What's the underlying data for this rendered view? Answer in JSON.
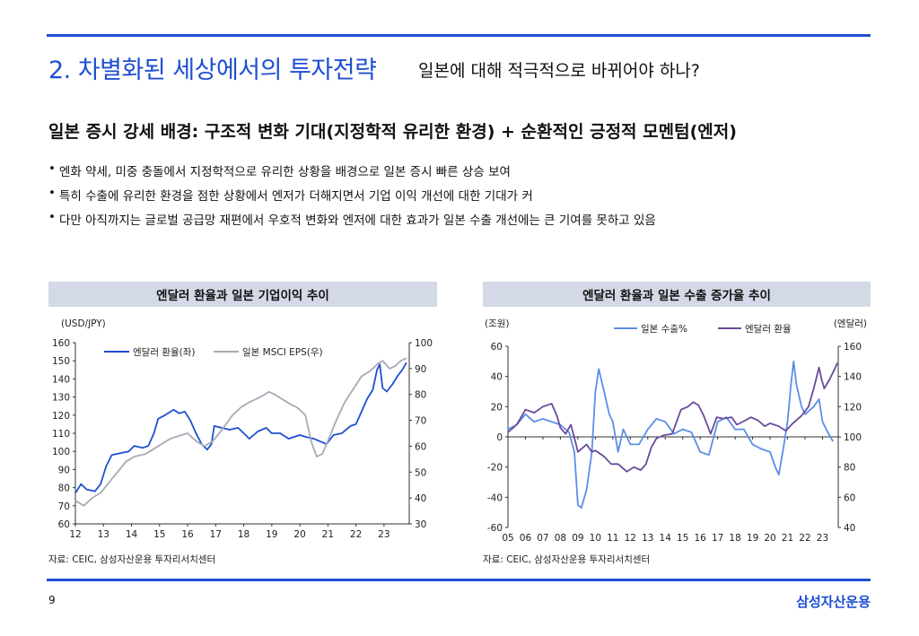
{
  "header": {
    "title": "2. 차별화된 세상에서의 투자전략",
    "subtitle": "일본에 대해 적극적으로 바뀌어야 하나?"
  },
  "section": {
    "heading": "일본 증시 강세 배경: 구조적 변화 기대(지정학적 유리한 환경) + 순환적인 긍정적 모멘텀(엔저)",
    "bullets": [
      "엔화 약세, 미중 충돌에서 지정학적으로 유리한 상황을 배경으로 일본 증시 빠른 상승 보여",
      "특히 수출에 유리한 환경을 점한 상황에서 엔저가 더해지면서 기업 이익 개선에 대한 기대가 커",
      "다만 아직까지는 글로벌 공급망 재편에서 우호적 변화와 엔저에 대한 효과가 일본 수출 개선에는 큰 기여를 못하고 있음"
    ]
  },
  "chart_data": [
    {
      "type": "line",
      "title": "엔달러 환율과 일본 기업이익 추이",
      "left_unit": "(USD/JPY)",
      "x_ticks": [
        "12",
        "13",
        "14",
        "15",
        "16",
        "17",
        "18",
        "19",
        "20",
        "21",
        "22",
        "23"
      ],
      "x_range": [
        2012.0,
        2023.9
      ],
      "ylim_left": [
        60,
        160
      ],
      "yticks_left": [
        60,
        70,
        80,
        90,
        100,
        110,
        120,
        130,
        140,
        150,
        160
      ],
      "ylim_right": [
        30,
        100
      ],
      "yticks_right": [
        30,
        40,
        50,
        60,
        70,
        80,
        90,
        100
      ],
      "series": [
        {
          "name": "엔달러 환율(좌)",
          "axis": "left",
          "color": "#1f4fd1",
          "points": [
            [
              2012.0,
              77
            ],
            [
              2012.2,
              82
            ],
            [
              2012.4,
              79
            ],
            [
              2012.7,
              78
            ],
            [
              2012.9,
              82
            ],
            [
              2013.1,
              92
            ],
            [
              2013.3,
              98
            ],
            [
              2013.6,
              99
            ],
            [
              2013.9,
              100
            ],
            [
              2014.1,
              103
            ],
            [
              2014.4,
              102
            ],
            [
              2014.6,
              103
            ],
            [
              2014.8,
              110
            ],
            [
              2014.95,
              118
            ],
            [
              2015.2,
              120
            ],
            [
              2015.5,
              123
            ],
            [
              2015.7,
              121
            ],
            [
              2015.9,
              122
            ],
            [
              2016.1,
              117
            ],
            [
              2016.3,
              110
            ],
            [
              2016.5,
              104
            ],
            [
              2016.7,
              101
            ],
            [
              2016.85,
              104
            ],
            [
              2016.95,
              114
            ],
            [
              2017.2,
              113
            ],
            [
              2017.5,
              112
            ],
            [
              2017.8,
              113
            ],
            [
              2018.0,
              110
            ],
            [
              2018.2,
              107
            ],
            [
              2018.5,
              111
            ],
            [
              2018.8,
              113
            ],
            [
              2019.0,
              110
            ],
            [
              2019.3,
              110
            ],
            [
              2019.6,
              107
            ],
            [
              2019.8,
              108
            ],
            [
              2020.0,
              109
            ],
            [
              2020.2,
              108
            ],
            [
              2020.5,
              107
            ],
            [
              2020.8,
              105
            ],
            [
              2020.95,
              104
            ],
            [
              2021.2,
              109
            ],
            [
              2021.5,
              110
            ],
            [
              2021.8,
              114
            ],
            [
              2022.0,
              115
            ],
            [
              2022.2,
              122
            ],
            [
              2022.4,
              129
            ],
            [
              2022.6,
              134
            ],
            [
              2022.75,
              145
            ],
            [
              2022.85,
              148
            ],
            [
              2022.95,
              135
            ],
            [
              2023.1,
              133
            ],
            [
              2023.3,
              137
            ],
            [
              2023.5,
              142
            ],
            [
              2023.65,
              145
            ],
            [
              2023.8,
              149
            ]
          ]
        },
        {
          "name": "일본 MSCI EPS(우)",
          "axis": "right",
          "color": "#a8aab5",
          "points": [
            [
              2012.0,
              39
            ],
            [
              2012.3,
              37
            ],
            [
              2012.6,
              40
            ],
            [
              2012.9,
              42
            ],
            [
              2013.2,
              46
            ],
            [
              2013.5,
              50
            ],
            [
              2013.8,
              54
            ],
            [
              2014.1,
              56
            ],
            [
              2014.5,
              57
            ],
            [
              2014.8,
              59
            ],
            [
              2015.1,
              61
            ],
            [
              2015.4,
              63
            ],
            [
              2015.7,
              64
            ],
            [
              2016.0,
              65
            ],
            [
              2016.3,
              62
            ],
            [
              2016.6,
              60
            ],
            [
              2016.9,
              62
            ],
            [
              2017.2,
              66
            ],
            [
              2017.6,
              72
            ],
            [
              2017.9,
              75
            ],
            [
              2018.2,
              77
            ],
            [
              2018.6,
              79
            ],
            [
              2018.9,
              81
            ],
            [
              2019.1,
              80
            ],
            [
              2019.4,
              78
            ],
            [
              2019.7,
              76
            ],
            [
              2019.9,
              75
            ],
            [
              2020.2,
              72
            ],
            [
              2020.4,
              62
            ],
            [
              2020.6,
              56
            ],
            [
              2020.8,
              57
            ],
            [
              2021.0,
              62
            ],
            [
              2021.3,
              70
            ],
            [
              2021.6,
              77
            ],
            [
              2021.9,
              82
            ],
            [
              2022.2,
              87
            ],
            [
              2022.5,
              89
            ],
            [
              2022.8,
              92
            ],
            [
              2022.95,
              93
            ],
            [
              2023.2,
              90
            ],
            [
              2023.4,
              91
            ],
            [
              2023.6,
              93
            ],
            [
              2023.8,
              94
            ]
          ]
        }
      ]
    },
    {
      "type": "line",
      "title": "엔달러 환율과 일본 수출 증가율 추이",
      "left_unit": "(조원)",
      "right_unit": "(엔달러)",
      "x_ticks": [
        "05",
        "06",
        "07",
        "08",
        "09",
        "10",
        "11",
        "12",
        "13",
        "14",
        "15",
        "16",
        "17",
        "18",
        "19",
        "20",
        "21",
        "22",
        "23"
      ],
      "x_range": [
        2005.0,
        2023.9
      ],
      "ylim_left": [
        -60,
        60
      ],
      "yticks_left": [
        -60,
        -40,
        -20,
        0,
        20,
        40,
        60
      ],
      "ylim_right": [
        40,
        160
      ],
      "yticks_right": [
        40,
        60,
        80,
        100,
        120,
        140,
        160
      ],
      "series": [
        {
          "name": "일본 수출%",
          "axis": "left",
          "color": "#5b8ee6",
          "points": [
            [
              2005.0,
              5
            ],
            [
              2005.5,
              8
            ],
            [
              2006.0,
              15
            ],
            [
              2006.5,
              10
            ],
            [
              2007.0,
              12
            ],
            [
              2007.5,
              10
            ],
            [
              2008.0,
              8
            ],
            [
              2008.5,
              3
            ],
            [
              2008.8,
              -10
            ],
            [
              2009.0,
              -45
            ],
            [
              2009.2,
              -47
            ],
            [
              2009.5,
              -35
            ],
            [
              2009.8,
              -10
            ],
            [
              2010.0,
              30
            ],
            [
              2010.2,
              45
            ],
            [
              2010.5,
              30
            ],
            [
              2010.8,
              15
            ],
            [
              2011.0,
              10
            ],
            [
              2011.3,
              -10
            ],
            [
              2011.6,
              5
            ],
            [
              2012.0,
              -5
            ],
            [
              2012.5,
              -5
            ],
            [
              2013.0,
              5
            ],
            [
              2013.5,
              12
            ],
            [
              2014.0,
              10
            ],
            [
              2014.5,
              2
            ],
            [
              2015.0,
              5
            ],
            [
              2015.5,
              3
            ],
            [
              2016.0,
              -10
            ],
            [
              2016.5,
              -12
            ],
            [
              2017.0,
              10
            ],
            [
              2017.5,
              13
            ],
            [
              2018.0,
              5
            ],
            [
              2018.5,
              5
            ],
            [
              2019.0,
              -5
            ],
            [
              2019.5,
              -8
            ],
            [
              2020.0,
              -10
            ],
            [
              2020.3,
              -20
            ],
            [
              2020.5,
              -25
            ],
            [
              2020.8,
              -5
            ],
            [
              2021.0,
              10
            ],
            [
              2021.2,
              35
            ],
            [
              2021.35,
              50
            ],
            [
              2021.5,
              35
            ],
            [
              2021.8,
              20
            ],
            [
              2022.0,
              15
            ],
            [
              2022.5,
              20
            ],
            [
              2022.8,
              25
            ],
            [
              2023.0,
              10
            ],
            [
              2023.3,
              3
            ],
            [
              2023.6,
              -3
            ]
          ]
        },
        {
          "name": "엔달러 환율",
          "axis": "right",
          "color": "#6a4a9a",
          "points": [
            [
              2005.0,
              103
            ],
            [
              2005.5,
              108
            ],
            [
              2006.0,
              118
            ],
            [
              2006.5,
              116
            ],
            [
              2007.0,
              120
            ],
            [
              2007.5,
              122
            ],
            [
              2007.8,
              114
            ],
            [
              2008.0,
              106
            ],
            [
              2008.3,
              102
            ],
            [
              2008.6,
              108
            ],
            [
              2008.9,
              95
            ],
            [
              2009.0,
              90
            ],
            [
              2009.5,
              95
            ],
            [
              2009.8,
              90
            ],
            [
              2010.0,
              91
            ],
            [
              2010.5,
              87
            ],
            [
              2010.9,
              82
            ],
            [
              2011.3,
              82
            ],
            [
              2011.8,
              77
            ],
            [
              2012.2,
              80
            ],
            [
              2012.6,
              78
            ],
            [
              2012.9,
              82
            ],
            [
              2013.2,
              93
            ],
            [
              2013.5,
              99
            ],
            [
              2013.9,
              101
            ],
            [
              2014.4,
              102
            ],
            [
              2014.9,
              118
            ],
            [
              2015.3,
              120
            ],
            [
              2015.6,
              123
            ],
            [
              2015.9,
              121
            ],
            [
              2016.2,
              114
            ],
            [
              2016.6,
              102
            ],
            [
              2016.95,
              113
            ],
            [
              2017.3,
              112
            ],
            [
              2017.8,
              113
            ],
            [
              2018.1,
              108
            ],
            [
              2018.6,
              111
            ],
            [
              2018.9,
              113
            ],
            [
              2019.3,
              111
            ],
            [
              2019.7,
              107
            ],
            [
              2020.0,
              109
            ],
            [
              2020.5,
              107
            ],
            [
              2020.9,
              104
            ],
            [
              2021.3,
              109
            ],
            [
              2021.8,
              114
            ],
            [
              2022.2,
              120
            ],
            [
              2022.5,
              132
            ],
            [
              2022.8,
              146
            ],
            [
              2022.95,
              138
            ],
            [
              2023.1,
              132
            ],
            [
              2023.4,
              138
            ],
            [
              2023.7,
              145
            ],
            [
              2023.85,
              149
            ]
          ]
        }
      ]
    }
  ],
  "sources": {
    "left": "자료: CEIC, 삼성자산운용 투자리서치센터",
    "right": "자료: CEIC, 삼성자산운용 투자리서치센터"
  },
  "footer": {
    "page_number": "9",
    "brand": "삼성자산운용"
  }
}
